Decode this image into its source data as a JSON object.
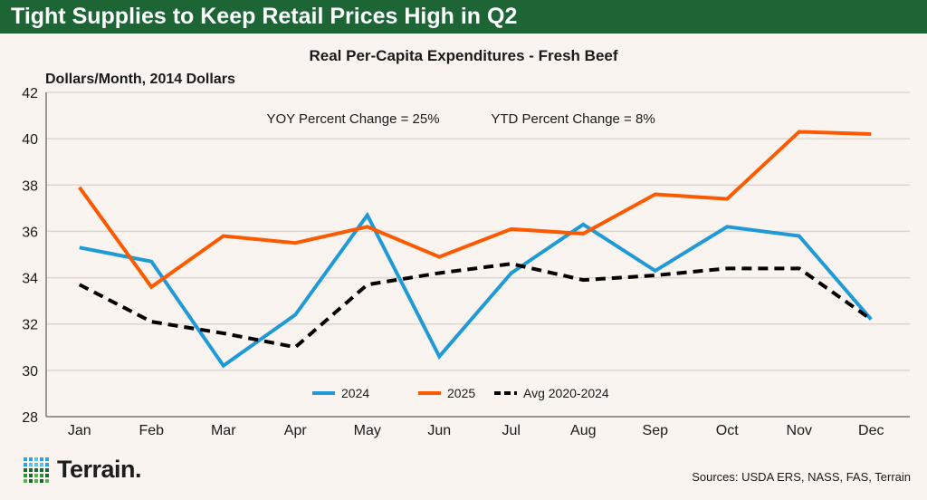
{
  "header": {
    "title": "Tight Supplies to Keep Retail Prices High in Q2"
  },
  "footer": {
    "source": "Sources: USDA ERS, NASS, FAS, Terrain",
    "logo_text": "Terrain."
  },
  "colors": {
    "header": "#1d6535",
    "s2024": "#1f9ad6",
    "s2025": "#fd5a00",
    "avg": "#000000"
  },
  "chart_data": {
    "type": "line",
    "title": "Real Per-Capita Expenditures - Fresh Beef",
    "ylabel": "Dollars/Month, 2014 Dollars",
    "xlabel": "",
    "ylim": [
      28,
      42
    ],
    "yticks": [
      28,
      30,
      32,
      34,
      36,
      38,
      40,
      42
    ],
    "grid": true,
    "legend": "bottom-center",
    "annotations": [
      "YOY Percent Change = 25%",
      "YTD Percent Change = 8%"
    ],
    "categories": [
      "Jan",
      "Feb",
      "Mar",
      "Apr",
      "May",
      "Jun",
      "Jul",
      "Aug",
      "Sep",
      "Oct",
      "Nov",
      "Dec"
    ],
    "series": [
      {
        "name": "2024",
        "color": "#1f9ad6",
        "dash": false,
        "values": [
          35.3,
          34.7,
          30.2,
          32.4,
          36.7,
          30.6,
          34.2,
          36.3,
          34.3,
          36.2,
          35.8,
          32.2
        ]
      },
      {
        "name": "2025",
        "color": "#fd5a00",
        "dash": false,
        "values": [
          37.9,
          33.6,
          35.8,
          35.5,
          36.2,
          34.9,
          36.1,
          35.9,
          37.6,
          37.4,
          40.3,
          40.2
        ]
      },
      {
        "name": "Avg 2020-2024",
        "color": "#000000",
        "dash": true,
        "values": [
          33.7,
          32.1,
          31.6,
          31.0,
          33.7,
          34.2,
          34.6,
          33.9,
          34.1,
          34.4,
          34.4,
          32.2
        ]
      }
    ]
  }
}
